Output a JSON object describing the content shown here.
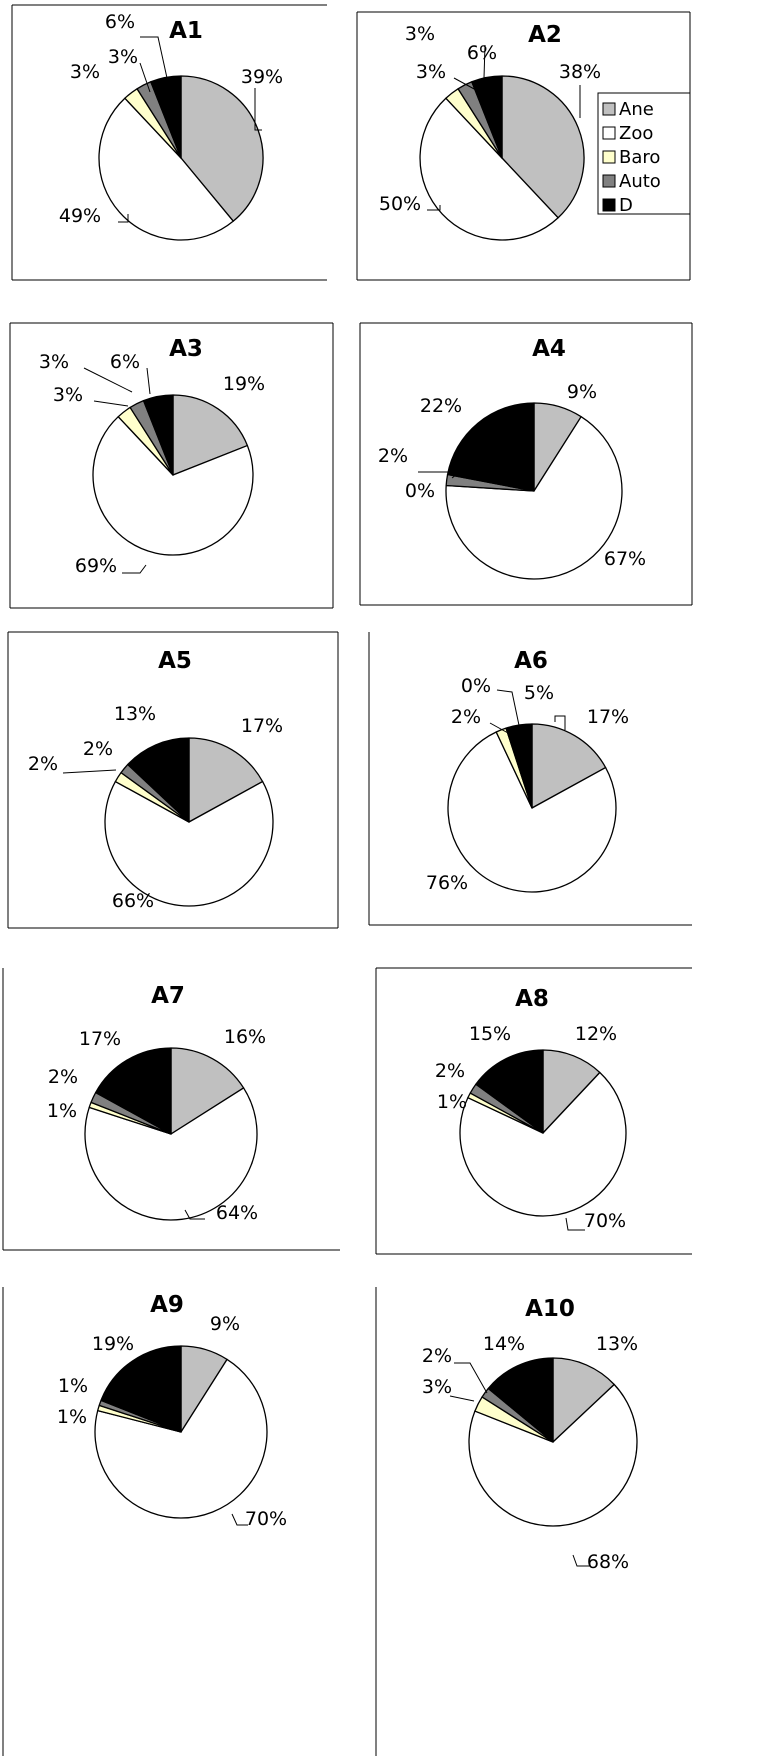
{
  "legend": [
    {
      "label": "Ane",
      "color": "#c0c0c0"
    },
    {
      "label": "Zoo",
      "color": "#ffffff"
    },
    {
      "label": "Baro",
      "color": "#ffffcc"
    },
    {
      "label": "Auto",
      "color": "#808080"
    },
    {
      "label": "D",
      "color": "#000000"
    }
  ],
  "chart_data": [
    {
      "type": "pie",
      "title": "A1",
      "labels": [
        "Ane",
        "Zoo",
        "Baro",
        "Auto",
        "D"
      ],
      "values": [
        39,
        49,
        3,
        3,
        6
      ],
      "value_labels": [
        "39%",
        "49%",
        "3%",
        "3%",
        "6%"
      ]
    },
    {
      "type": "pie",
      "title": "A2",
      "labels": [
        "Ane",
        "Zoo",
        "Baro",
        "Auto",
        "D"
      ],
      "values": [
        38,
        50,
        3,
        3,
        6
      ],
      "value_labels": [
        "38%",
        "50%",
        "3%",
        "3%",
        "6%"
      ]
    },
    {
      "type": "pie",
      "title": "A3",
      "labels": [
        "Ane",
        "Zoo",
        "Baro",
        "Auto",
        "D"
      ],
      "values": [
        19,
        69,
        3,
        3,
        6
      ],
      "value_labels": [
        "19%",
        "69%",
        "3%",
        "3%",
        "6%"
      ]
    },
    {
      "type": "pie",
      "title": "A4",
      "labels": [
        "Ane",
        "Zoo",
        "Baro",
        "Auto",
        "D"
      ],
      "values": [
        9,
        67,
        0,
        2,
        22
      ],
      "value_labels": [
        "9%",
        "67%",
        "0%",
        "2%",
        "22%"
      ]
    },
    {
      "type": "pie",
      "title": "A5",
      "labels": [
        "Ane",
        "Zoo",
        "Baro",
        "Auto",
        "D"
      ],
      "values": [
        17,
        66,
        2,
        2,
        13
      ],
      "value_labels": [
        "17%",
        "66%",
        "2%",
        "2%",
        "13%"
      ]
    },
    {
      "type": "pie",
      "title": "A6",
      "labels": [
        "Ane",
        "Zoo",
        "Baro",
        "Auto",
        "D"
      ],
      "values": [
        17,
        76,
        2,
        0,
        5
      ],
      "value_labels": [
        "17%",
        "76%",
        "2%",
        "0%",
        "5%"
      ]
    },
    {
      "type": "pie",
      "title": "A7",
      "labels": [
        "Ane",
        "Zoo",
        "Baro",
        "Auto",
        "D"
      ],
      "values": [
        16,
        64,
        1,
        2,
        17
      ],
      "value_labels": [
        "16%",
        "64%",
        "1%",
        "2%",
        "17%"
      ]
    },
    {
      "type": "pie",
      "title": "A8",
      "labels": [
        "Ane",
        "Zoo",
        "Baro",
        "Auto",
        "D"
      ],
      "values": [
        12,
        70,
        1,
        2,
        15
      ],
      "value_labels": [
        "12%",
        "70%",
        "1%",
        "2%",
        "15%"
      ]
    },
    {
      "type": "pie",
      "title": "A9",
      "labels": [
        "Ane",
        "Zoo",
        "Baro",
        "Auto",
        "D"
      ],
      "values": [
        9,
        70,
        1,
        1,
        19
      ],
      "value_labels": [
        "9%",
        "70%",
        "1%",
        "1%",
        "19%"
      ]
    },
    {
      "type": "pie",
      "title": "A10",
      "labels": [
        "Ane",
        "Zoo",
        "Baro",
        "Auto",
        "D"
      ],
      "values": [
        13,
        68,
        3,
        2,
        14
      ],
      "value_labels": [
        "13%",
        "68%",
        "3%",
        "2%",
        "14%"
      ]
    }
  ]
}
